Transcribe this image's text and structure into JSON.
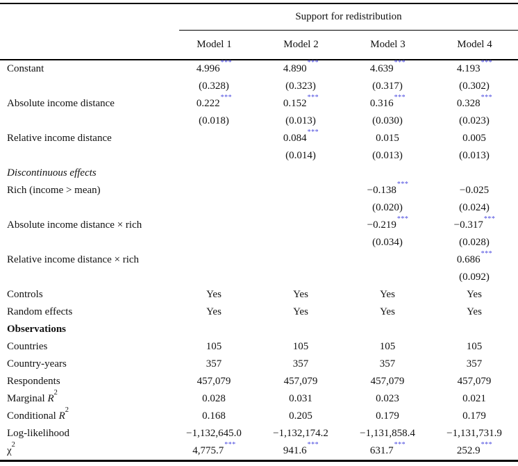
{
  "table": {
    "spanner": "Support for redistribution",
    "columns": [
      "Model 1",
      "Model 2",
      "Model 3",
      "Model 4"
    ],
    "star_color": "#4b4bdf",
    "rows": [
      {
        "label": "Constant",
        "c0": "4.996",
        "s0": "***",
        "c1": "4.890",
        "s1": "***",
        "c2": "4.639",
        "s2": "***",
        "c3": "4.193",
        "s3": "***"
      },
      {
        "c0": "(0.328)",
        "c1": "(0.323)",
        "c2": "(0.317)",
        "c3": "(0.302)"
      },
      {
        "label": "Absolute income distance",
        "c0": "0.222",
        "s0": "***",
        "c1": "0.152",
        "s1": "***",
        "c2": "0.316",
        "s2": "***",
        "c3": "0.328",
        "s3": "***"
      },
      {
        "c0": "(0.018)",
        "c1": "(0.013)",
        "c2": "(0.030)",
        "c3": "(0.023)"
      },
      {
        "label": "Relative income distance",
        "c1": "0.084",
        "s1": "***",
        "c2": "0.015",
        "c3": "0.005"
      },
      {
        "c1": "(0.014)",
        "c2": "(0.013)",
        "c3": "(0.013)"
      },
      {
        "label": "Discontinuous effects"
      },
      {
        "label": "Rich (income > mean)",
        "c2": "−0.138",
        "s2": "***",
        "c3": "−0.025"
      },
      {
        "c2": "(0.020)",
        "c3": "(0.024)"
      },
      {
        "label": "Absolute income distance × rich",
        "c2": "−0.219",
        "s2": "***",
        "c3": "−0.317",
        "s3": "***"
      },
      {
        "c2": "(0.034)",
        "c3": "(0.028)"
      },
      {
        "label": "Relative income distance × rich",
        "c3": "0.686",
        "s3": "***"
      },
      {
        "c3": "(0.092)"
      },
      {
        "label": "Controls",
        "c0": "Yes",
        "c1": "Yes",
        "c2": "Yes",
        "c3": "Yes"
      },
      {
        "label": "Random effects",
        "c0": "Yes",
        "c1": "Yes",
        "c2": "Yes",
        "c3": "Yes"
      },
      {
        "label": "Observations"
      },
      {
        "label": "Countries",
        "c0": "105",
        "c1": "105",
        "c2": "105",
        "c3": "105"
      },
      {
        "label": "Country-years",
        "c0": "357",
        "c1": "357",
        "c2": "357",
        "c3": "357"
      },
      {
        "label": "Respondents",
        "c0": "457,079",
        "c1": "457,079",
        "c2": "457,079",
        "c3": "457,079"
      },
      {
        "label": "Marginal ",
        "mi": "R",
        "msup": "2",
        "c0": "0.028",
        "c1": "0.031",
        "c2": "0.023",
        "c3": "0.021"
      },
      {
        "label": "Conditional ",
        "mi": "R",
        "msup": "2",
        "c0": "0.168",
        "c1": "0.205",
        "c2": "0.179",
        "c3": "0.179"
      },
      {
        "label": "Log-likelihood",
        "c0": "−1,132,645.0",
        "c1": "−1,132,174.2",
        "c2": "−1,131,858.4",
        "c3": "−1,131,731.9"
      },
      {
        "mn": "χ",
        "msup": "2",
        "c0": "4,775.7",
        "s0": "***",
        "c1": "941.6",
        "s1": "***",
        "c2": "631.7",
        "s2": "***",
        "c3": "252.9",
        "s3": "***"
      }
    ]
  }
}
